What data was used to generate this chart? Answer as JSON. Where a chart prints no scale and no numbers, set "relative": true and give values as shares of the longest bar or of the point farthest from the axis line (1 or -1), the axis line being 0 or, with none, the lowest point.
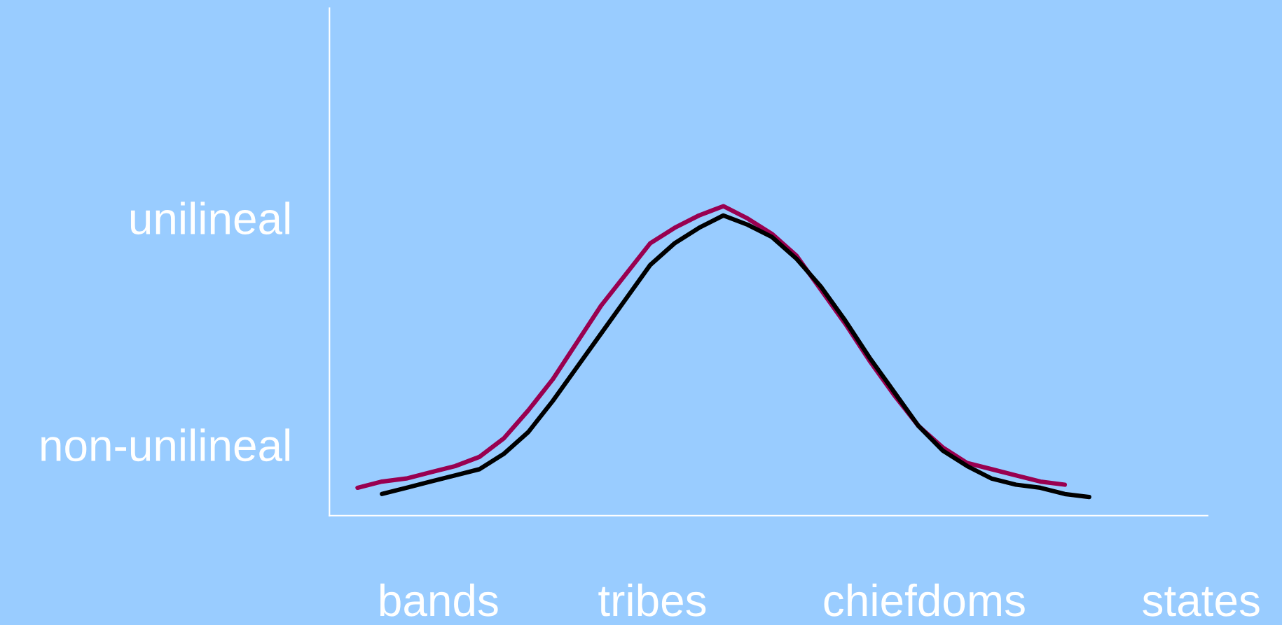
{
  "chart_data": {
    "type": "line",
    "relative": true,
    "annotations": [
      "unilineal",
      "non-unilineal",
      "bands",
      "tribes",
      "chiefdoms",
      "states"
    ],
    "categories": [
      null,
      null,
      null,
      null,
      null,
      null,
      null,
      null,
      null,
      null,
      null,
      null,
      null,
      null,
      null,
      null,
      null,
      null,
      null,
      null,
      null,
      null,
      null,
      null,
      null,
      null,
      null,
      null,
      null,
      null,
      null
    ],
    "series": [
      {
        "color": "#990050",
        "values": [
          0.09,
          0.11,
          0.12,
          0.14,
          0.16,
          0.19,
          0.25,
          0.34,
          0.44,
          0.56,
          0.68,
          0.78,
          0.88,
          0.93,
          0.97,
          1.0,
          0.96,
          0.91,
          0.84,
          0.73,
          0.62,
          0.5,
          0.39,
          0.29,
          0.22,
          0.17,
          0.15,
          0.13,
          0.11,
          0.1,
          null
        ]
      },
      {
        "color": "#000000",
        "values": [
          null,
          0.07,
          0.09,
          0.11,
          0.13,
          0.15,
          0.2,
          0.27,
          0.37,
          0.48,
          0.59,
          0.7,
          0.81,
          0.88,
          0.93,
          0.97,
          0.94,
          0.9,
          0.83,
          0.74,
          0.63,
          0.51,
          0.4,
          0.29,
          0.21,
          0.16,
          0.12,
          0.1,
          0.09,
          0.07,
          0.06
        ]
      }
    ]
  }
}
